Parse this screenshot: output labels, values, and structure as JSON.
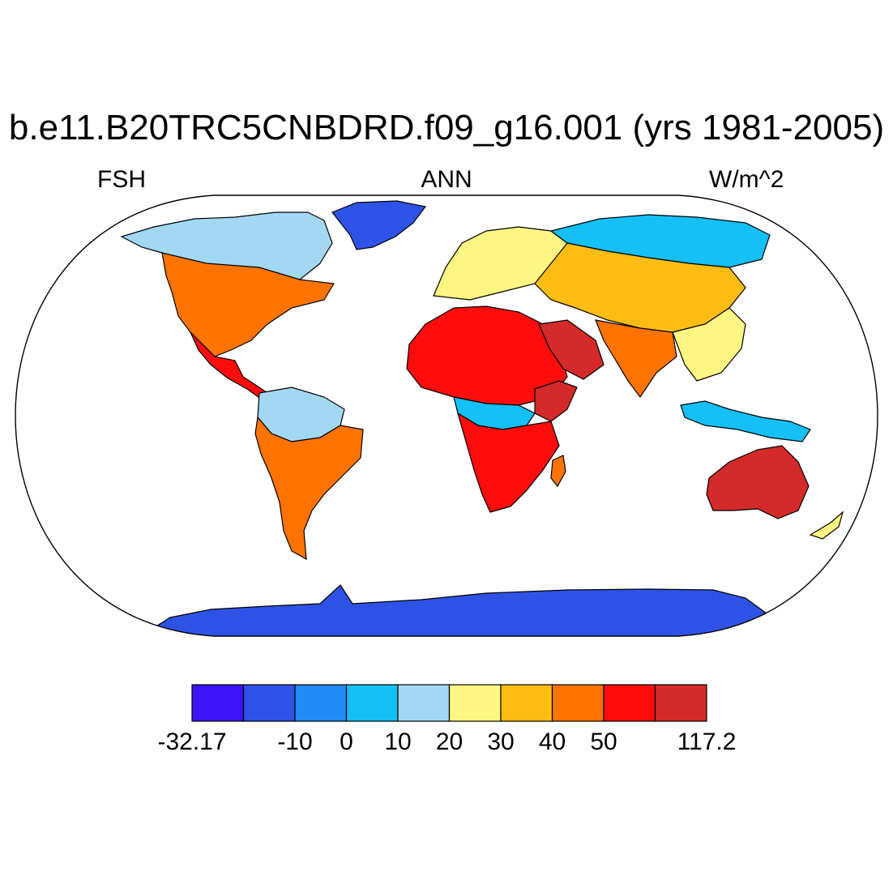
{
  "title": "b.e11.B20TRC5CNBDRD.f09_g16.001 (yrs 1981-2005)",
  "left_label": "FSH",
  "center_label": "ANN",
  "right_label": "W/m^2",
  "colorbar": {
    "colors": [
      "#3d14f5",
      "#2f52e6",
      "#238bf5",
      "#14c0f5",
      "#a3d8f2",
      "#fff582",
      "#ffbd14",
      "#ff7300",
      "#ff0d0d",
      "#d42a2a"
    ],
    "tick_labels": [
      "-32.17",
      "-10",
      "0",
      "10",
      "20",
      "30",
      "40",
      "50",
      "117.2"
    ],
    "tick_values": [
      -32.17,
      -10,
      0,
      10,
      20,
      30,
      40,
      50,
      117.2
    ],
    "boundaries": [
      -32.17,
      -20,
      -10,
      0,
      10,
      20,
      30,
      40,
      50,
      60,
      117.2
    ]
  },
  "map_regions": [
    {
      "name": "Greenland",
      "level": 1
    },
    {
      "name": "Antarctica",
      "level": 0
    },
    {
      "name": "North America",
      "level": 7
    },
    {
      "name": "Canada",
      "level": 4
    },
    {
      "name": "South America",
      "level": 7
    },
    {
      "name": "Amazon",
      "level": 4
    },
    {
      "name": "Sahara",
      "level": 8
    },
    {
      "name": "Congo Basin",
      "level": 4
    },
    {
      "name": "Southern Africa",
      "level": 8
    },
    {
      "name": "Europe",
      "level": 5
    },
    {
      "name": "Siberia",
      "level": 3
    },
    {
      "name": "Arabia",
      "level": 9
    },
    {
      "name": "India",
      "level": 7
    },
    {
      "name": "Southeast Asia",
      "level": 3
    },
    {
      "name": "Australia",
      "level": 9
    }
  ]
}
